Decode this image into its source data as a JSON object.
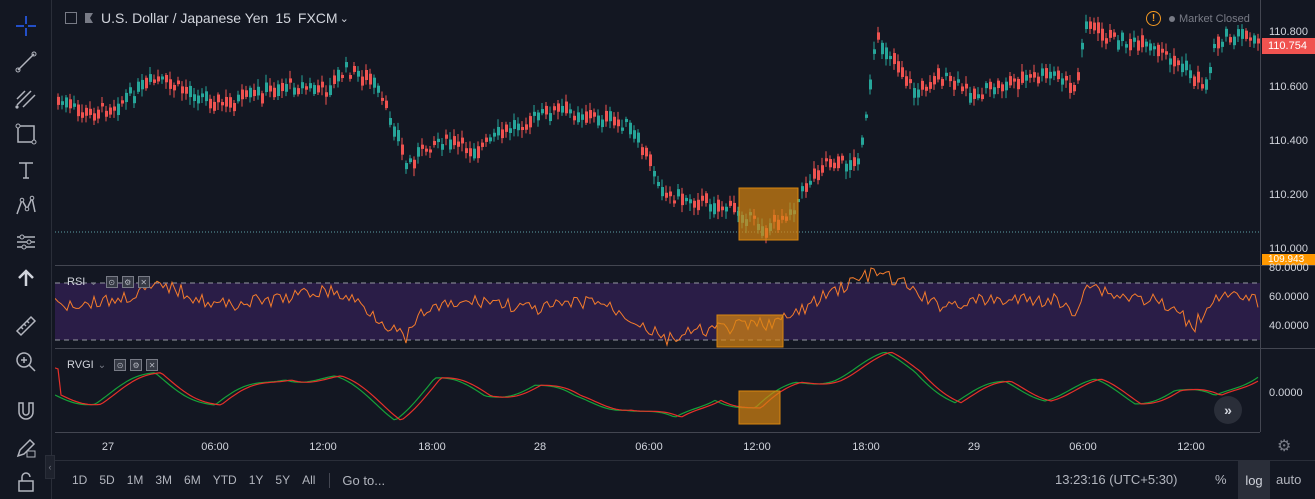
{
  "header": {
    "symbol": "U.S. Dollar / Japanese Yen",
    "interval": "15",
    "exchange": "FXCM",
    "exchange_caret": "⌄",
    "market_status": "Market Closed",
    "warning_glyph": "!"
  },
  "price_scale": {
    "ticks": [
      "110.800",
      "110.600",
      "110.400",
      "110.200",
      "110.000"
    ],
    "current_price": "110.754",
    "current_price_color": "#f05350",
    "reference_price": "109.943",
    "reference_price_color": "#ff9800"
  },
  "rsi": {
    "label": "RSI",
    "ticks": [
      "80.0000",
      "60.0000",
      "40.0000"
    ],
    "upper_band": 70,
    "lower_band": 30,
    "line_color": "#f57c2c",
    "band_fill": "#2a1d47"
  },
  "rvgi": {
    "label": "RVGI",
    "tick": "0.0000",
    "series_colors": [
      "#15a139",
      "#e5302a"
    ]
  },
  "dropdown_caret": "⌄",
  "pane_controls": [
    "⊙",
    "⚙",
    "✕"
  ],
  "time_axis": {
    "ticks": [
      "27",
      "06:00",
      "12:00",
      "18:00",
      "28",
      "06:00",
      "12:00",
      "18:00",
      "29",
      "06:00",
      "12:00"
    ]
  },
  "bottom_bar": {
    "ranges": [
      "1D",
      "5D",
      "1M",
      "3M",
      "6M",
      "YTD",
      "1Y",
      "5Y",
      "All"
    ],
    "goto": "Go to...",
    "clock": "13:23:16 (UTC+5:30)",
    "percent": "%",
    "log": "log",
    "auto": "auto"
  },
  "scroll_right_glyph": "»",
  "collapse_glyph": "‹",
  "settings_glyph": "⚙",
  "colors": {
    "background": "#131722",
    "up_candle": "#26a69a",
    "down_candle": "#ef5350",
    "highlight": "#d9860f"
  },
  "toolbar_icons": [
    "crosshair-icon",
    "trend-line-icon",
    "fib-tool-icon",
    "rectangle-icon",
    "text-icon",
    "pattern-icon",
    "prediction-icon",
    "arrow-up-icon",
    "ruler-icon",
    "zoom-in-icon",
    "magnet-icon",
    "pencil-lock-icon",
    "lock-icon"
  ]
}
